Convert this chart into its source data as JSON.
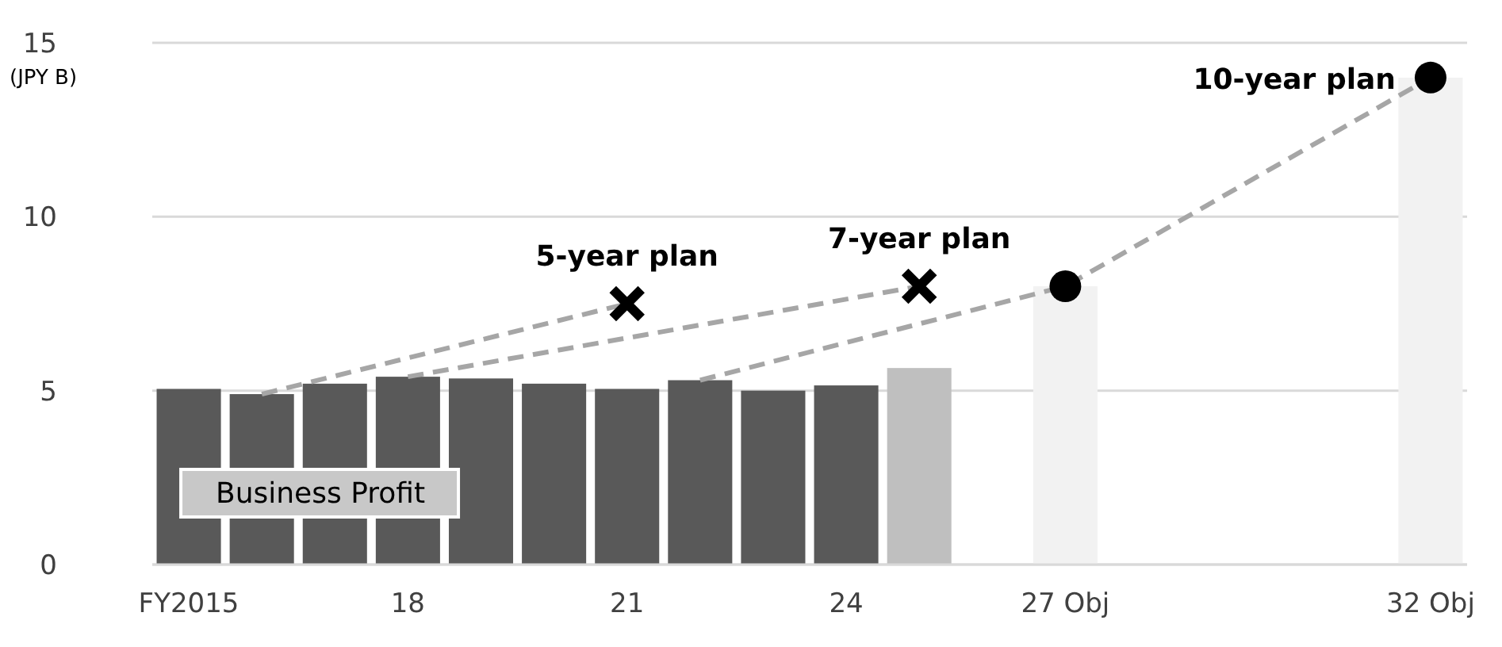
{
  "chart_data": {
    "type": "bar",
    "ylabel": "(JPY B)",
    "categories": [
      "FY2015",
      null,
      null,
      "18",
      null,
      null,
      "21",
      null,
      null,
      "24",
      null,
      null,
      "27 Obj",
      null,
      null,
      null,
      null,
      "32 Obj"
    ],
    "series": [
      {
        "name": "Business Profit",
        "values": [
          5.05,
          4.9,
          5.2,
          5.4,
          5.35,
          5.2,
          5.05,
          5.3,
          5.0,
          5.15,
          5.65,
          null,
          8.0,
          null,
          null,
          null,
          null,
          14.0
        ],
        "colors": [
          "#595959",
          "#595959",
          "#595959",
          "#595959",
          "#595959",
          "#595959",
          "#595959",
          "#595959",
          "#595959",
          "#595959",
          "#bfbfbf",
          null,
          "#f2f2f2",
          null,
          null,
          null,
          null,
          "#f2f2f2"
        ]
      },
      {
        "name": "5-year plan",
        "type": "line",
        "color": "#a6a6a6",
        "line_style": "dashed",
        "marker": "cross",
        "values": [
          null,
          4.9,
          null,
          null,
          null,
          null,
          7.5,
          null,
          null,
          null,
          null,
          null,
          null,
          null,
          null,
          null,
          null,
          null
        ]
      },
      {
        "name": "7-year plan",
        "type": "line",
        "color": "#a6a6a6",
        "line_style": "dashed",
        "marker": "cross",
        "values": [
          null,
          null,
          null,
          5.4,
          null,
          null,
          null,
          null,
          null,
          null,
          8.0,
          null,
          null,
          null,
          null,
          null,
          null,
          null
        ]
      },
      {
        "name": "10-year plan",
        "type": "line",
        "color": "#a6a6a6",
        "line_style": "dashed",
        "marker": "circle",
        "values": [
          null,
          null,
          null,
          null,
          null,
          null,
          null,
          5.3,
          null,
          null,
          null,
          null,
          8.0,
          null,
          null,
          null,
          null,
          14.0
        ]
      }
    ],
    "ylim": [
      0,
      15
    ],
    "yticks": [
      0,
      5,
      10,
      15
    ],
    "grid": "y",
    "legend": false
  }
}
